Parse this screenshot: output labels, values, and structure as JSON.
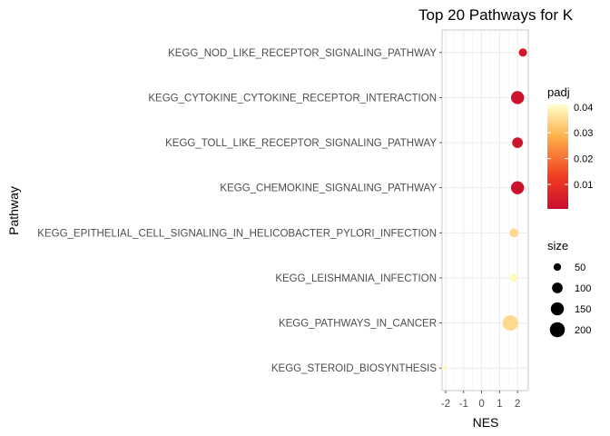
{
  "chart_data": {
    "type": "scatter",
    "title": "Top 20 Pathways for  K",
    "xlabel": "NES",
    "ylabel": "Pathway",
    "xlim": [
      -2.2,
      2.6
    ],
    "x_ticks": [
      "-2",
      "-1",
      "0",
      "1",
      "2"
    ],
    "grid": true,
    "legend_position": "right",
    "categories": [
      "KEGG_NOD_LIKE_RECEPTOR_SIGNALING_PATHWAY",
      "KEGG_CYTOKINE_CYTOKINE_RECEPTOR_INTERACTION",
      "KEGG_TOLL_LIKE_RECEPTOR_SIGNALING_PATHWAY",
      "KEGG_CHEMOKINE_SIGNALING_PATHWAY",
      "KEGG_EPITHELIAL_CELL_SIGNALING_IN_HELICOBACTER_PYLORI_INFECTION",
      "KEGG_LEISHMANIA_INFECTION",
      "KEGG_PATHWAYS_IN_CANCER",
      "KEGG_STEROID_BIOSYNTHESIS"
    ],
    "points": [
      {
        "pathway": "KEGG_NOD_LIKE_RECEPTOR_SIGNALING_PATHWAY",
        "nes": 2.3,
        "padj": 0.003,
        "size": 60
      },
      {
        "pathway": "KEGG_CYTOKINE_CYTOKINE_RECEPTOR_INTERACTION",
        "nes": 2.0,
        "padj": 0.001,
        "size": 150
      },
      {
        "pathway": "KEGG_TOLL_LIKE_RECEPTOR_SIGNALING_PATHWAY",
        "nes": 2.0,
        "padj": 0.002,
        "size": 100
      },
      {
        "pathway": "KEGG_CHEMOKINE_SIGNALING_PATHWAY",
        "nes": 2.0,
        "padj": 0.001,
        "size": 150
      },
      {
        "pathway": "KEGG_EPITHELIAL_CELL_SIGNALING_IN_HELICOBACTER_PYLORI_INFECTION",
        "nes": 1.8,
        "padj": 0.035,
        "size": 68
      },
      {
        "pathway": "KEGG_LEISHMANIA_INFECTION",
        "nes": 1.8,
        "padj": 0.04,
        "size": 60
      },
      {
        "pathway": "KEGG_PATHWAYS_IN_CANCER",
        "nes": 1.6,
        "padj": 0.035,
        "size": 210
      },
      {
        "pathway": "KEGG_STEROID_BIOSYNTHESIS",
        "nes": -2.1,
        "padj": 0.04,
        "size": 17
      }
    ],
    "color_legend": {
      "title": "padj",
      "ticks": [
        "0.04",
        "0.03",
        "0.02",
        "0.01"
      ],
      "tick_values": [
        0.04,
        0.03,
        0.02,
        0.01
      ],
      "range": [
        0.0005,
        0.041
      ],
      "colors": [
        "#c8102e",
        "#f03b20",
        "#feb24c",
        "#ffffcc"
      ]
    },
    "size_legend": {
      "title": "size",
      "values": [
        50,
        100,
        150,
        200
      ],
      "labels": [
        "50",
        "100",
        "150",
        "200"
      ]
    }
  }
}
